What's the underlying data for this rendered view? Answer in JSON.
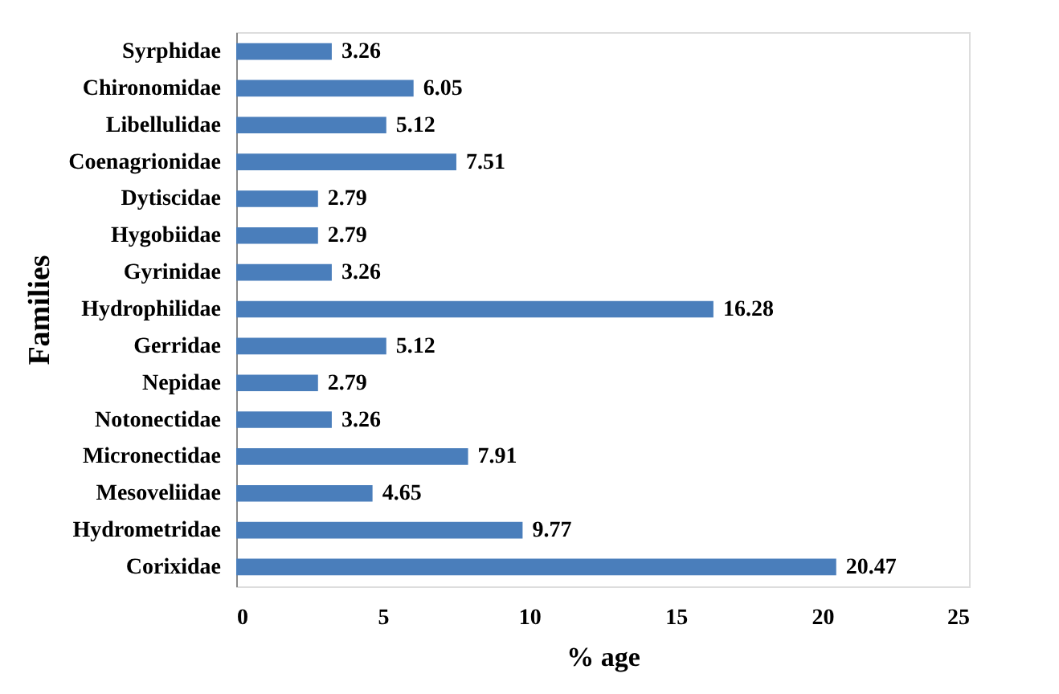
{
  "chart_data": {
    "type": "bar",
    "orientation": "horizontal",
    "xlabel": "% age",
    "ylabel": "Families",
    "categories": [
      "Syrphidae",
      "Chironomidae",
      "Libellulidae",
      "Coenagrionidae",
      "Dytiscidae",
      "Hygobiidae",
      "Gyrinidae",
      "Hydrophilidae",
      "Gerridae",
      "Nepidae",
      "Notonectidae",
      "Micronectidae",
      "Mesoveliidae",
      "Hydrometridae",
      "Corixidae"
    ],
    "values": [
      3.26,
      6.05,
      5.12,
      7.51,
      2.79,
      2.79,
      3.26,
      16.28,
      5.12,
      2.79,
      3.26,
      7.91,
      4.65,
      9.77,
      20.47
    ],
    "color": "#4a7ebb",
    "xlim": [
      0,
      25
    ],
    "xticks": [
      0,
      5,
      10,
      15,
      20,
      25
    ],
    "grid": false,
    "data_labels": true
  }
}
